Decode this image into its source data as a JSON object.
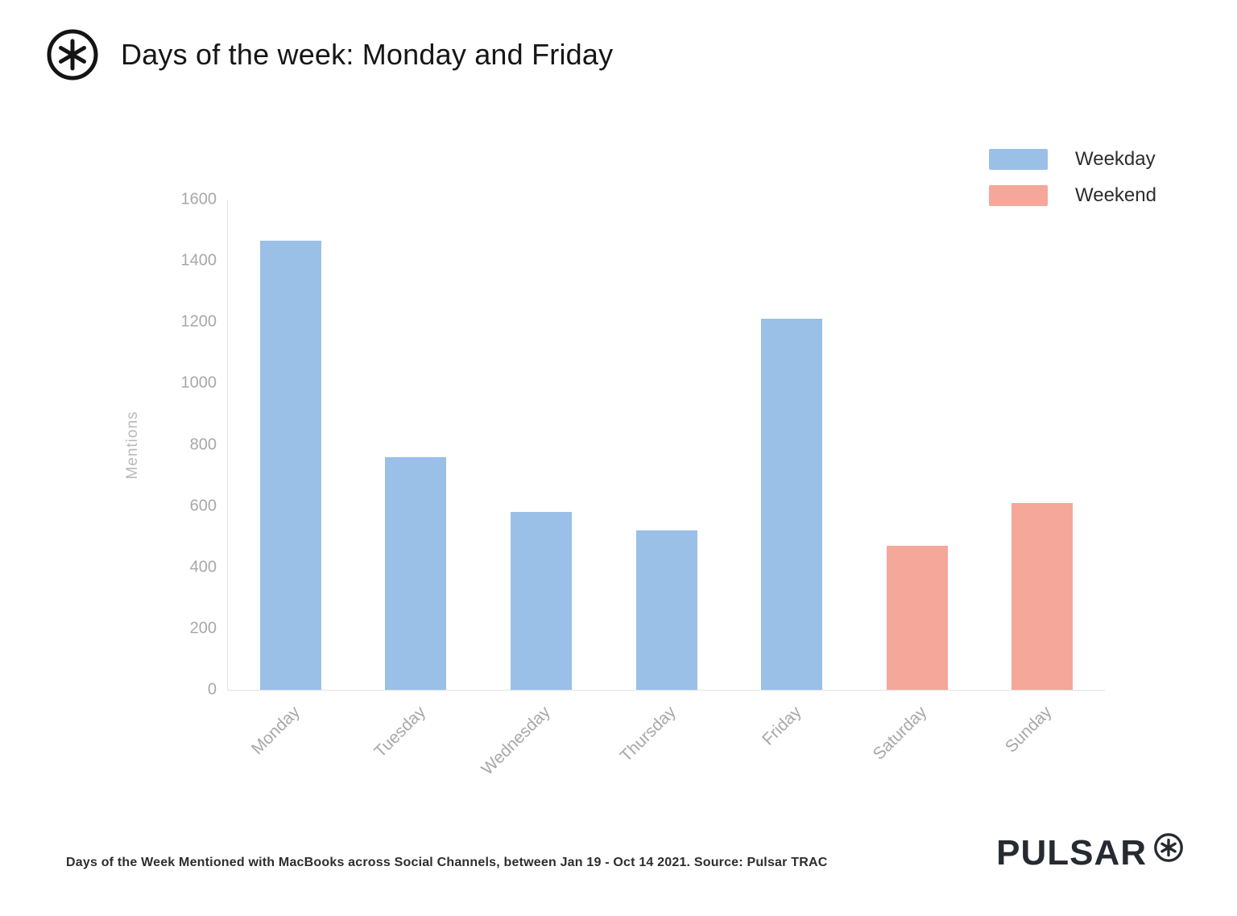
{
  "header": {
    "title": "Days of the week: Monday and Friday"
  },
  "legend": {
    "items": [
      {
        "label": "Weekday",
        "color": "#9ac0e8"
      },
      {
        "label": "Weekend",
        "color": "#f5a79a"
      }
    ]
  },
  "chart_data": {
    "type": "bar",
    "title": "Days of the week: Monday and Friday",
    "xlabel": "",
    "ylabel": "Mentions",
    "ylim": [
      0,
      1600
    ],
    "ytick_step": 200,
    "grid": false,
    "legend_position": "top-right",
    "categories": [
      "Monday",
      "Tuesday",
      "Wednesday",
      "Thursday",
      "Friday",
      "Saturday",
      "Sunday"
    ],
    "values": [
      1465,
      760,
      580,
      520,
      1210,
      470,
      610
    ],
    "series_by_point": [
      "Weekday",
      "Weekday",
      "Weekday",
      "Weekday",
      "Weekday",
      "Weekend",
      "Weekend"
    ],
    "colors": {
      "Weekday": "#9ac0e8",
      "Weekend": "#f5a79a"
    }
  },
  "footer": {
    "caption": "Days of the Week Mentioned with MacBooks across Social Channels, between Jan 19 - Oct 14 2021. Source: Pulsar TRAC",
    "brand": "PULSAR"
  }
}
